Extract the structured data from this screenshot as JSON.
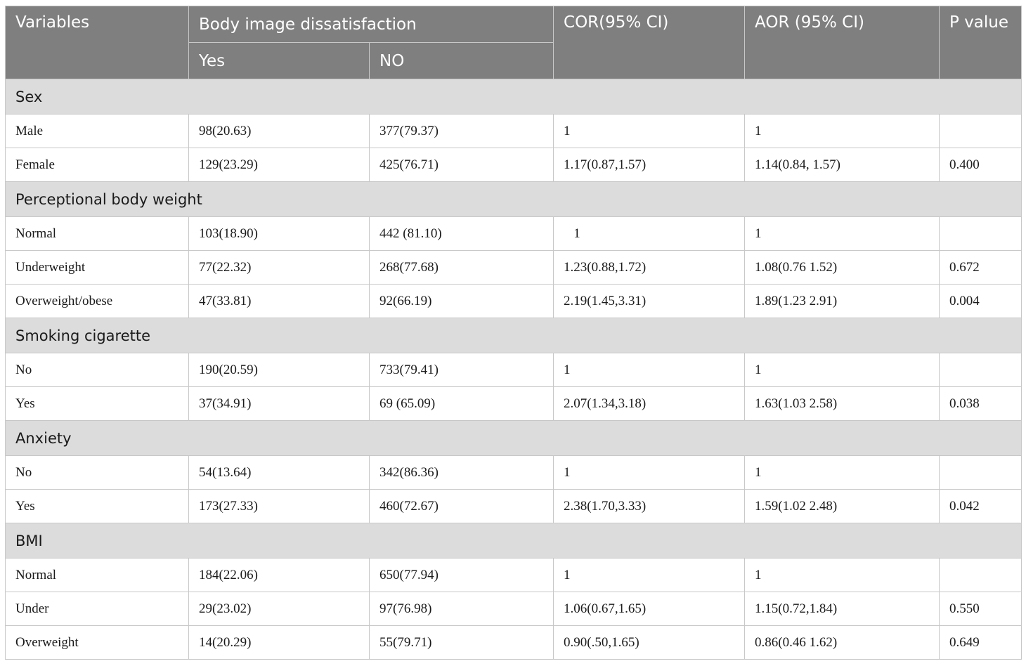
{
  "table": {
    "headers": {
      "variables": "Variables",
      "body_image": "Body image dissatisfaction",
      "yes": "Yes",
      "no": "NO",
      "cor": "COR(95% CI)",
      "aor": "AOR (95% CI)",
      "p_value": "P value"
    },
    "groups": [
      {
        "label": "Sex",
        "rows": [
          {
            "variable": "Male",
            "yes": "98(20.63)",
            "no": "377(79.37)",
            "cor": "1",
            "aor": "1",
            "p": ""
          },
          {
            "variable": "Female",
            "yes": "129(23.29)",
            "no": "425(76.71)",
            "cor": "1.17(0.87,1.57)",
            "aor": "1.14(0.84, 1.57)",
            "p": "0.400"
          }
        ]
      },
      {
        "label": "Perceptional body weight",
        "rows": [
          {
            "variable": "Normal",
            "yes": "103(18.90)",
            "no": "442 (81.10)",
            "cor": "   1",
            "aor": "1",
            "p": ""
          },
          {
            "variable": "Underweight",
            "yes": "77(22.32)",
            "no": "268(77.68)",
            "cor": "1.23(0.88,1.72)",
            "aor": "1.08(0.76 1.52)",
            "p": "0.672"
          },
          {
            "variable": "Overweight/obese",
            "yes": "47(33.81)",
            "no": "92(66.19)",
            "cor": "2.19(1.45,3.31)",
            "aor": "1.89(1.23 2.91)",
            "p": "0.004"
          }
        ]
      },
      {
        "label": "Smoking cigarette",
        "rows": [
          {
            "variable": "No",
            "yes": "190(20.59)",
            "no": "733(79.41)",
            "cor": "1",
            "aor": "1",
            "p": ""
          },
          {
            "variable": "Yes",
            "yes": "37(34.91)",
            "no": "69 (65.09)",
            "cor": "2.07(1.34,3.18)",
            "aor": "1.63(1.03 2.58)",
            "p": "0.038"
          }
        ]
      },
      {
        "label": "Anxiety",
        "rows": [
          {
            "variable": "No",
            "yes": "54(13.64)",
            "no": "342(86.36)",
            "cor": "1",
            "aor": "1",
            "p": ""
          },
          {
            "variable": "Yes",
            "yes": "173(27.33)",
            "no": "460(72.67)",
            "cor": "2.38(1.70,3.33)",
            "aor": "1.59(1.02 2.48)",
            "p": "0.042"
          }
        ]
      },
      {
        "label": "BMI",
        "rows": [
          {
            "variable": "Normal",
            "yes": "184(22.06)",
            "no": "650(77.94)",
            "cor": "1",
            "aor": "1",
            "p": ""
          },
          {
            "variable": "Under",
            "yes": "29(23.02)",
            "no": "97(76.98)",
            "cor": "1.06(0.67,1.65)",
            "aor": "1.15(0.72,1.84)",
            "p": "0.550"
          },
          {
            "variable": "Overweight",
            "yes": "14(20.29)",
            "no": "55(79.71)",
            "cor": "0.90(.50,1.65)",
            "aor": "0.86(0.46 1.62)",
            "p": "0.649"
          }
        ]
      }
    ]
  }
}
